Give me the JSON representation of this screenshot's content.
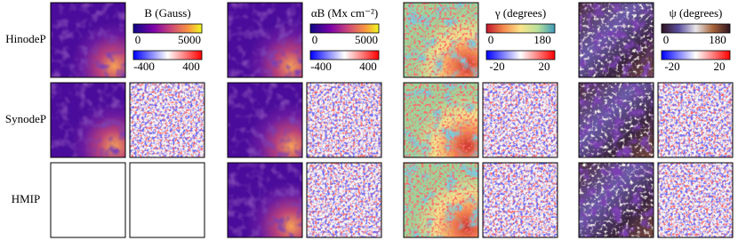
{
  "row_labels": [
    "HinodeP",
    "SynodeP",
    "HMIP"
  ],
  "columns": [
    {
      "title": "B (Gauss)",
      "colorbar_top": {
        "ticks": [
          0,
          5000
        ]
      },
      "colorbar_bottom": {
        "ticks": [
          -400,
          400
        ]
      }
    },
    {
      "title": "αB (Mx cm⁻²)",
      "colorbar_top": {
        "ticks": [
          0,
          5000
        ]
      },
      "colorbar_bottom": {
        "ticks": [
          -400,
          400
        ]
      }
    },
    {
      "title": "γ (degrees)",
      "colorbar_top": {
        "ticks": [
          0,
          180
        ]
      },
      "colorbar_bottom": {
        "ticks": [
          -20,
          20
        ]
      }
    },
    {
      "title": "ψ (degrees)",
      "colorbar_top": {
        "ticks": [
          0,
          180
        ]
      },
      "colorbar_bottom": {
        "ticks": [
          -20,
          20
        ]
      }
    }
  ]
}
